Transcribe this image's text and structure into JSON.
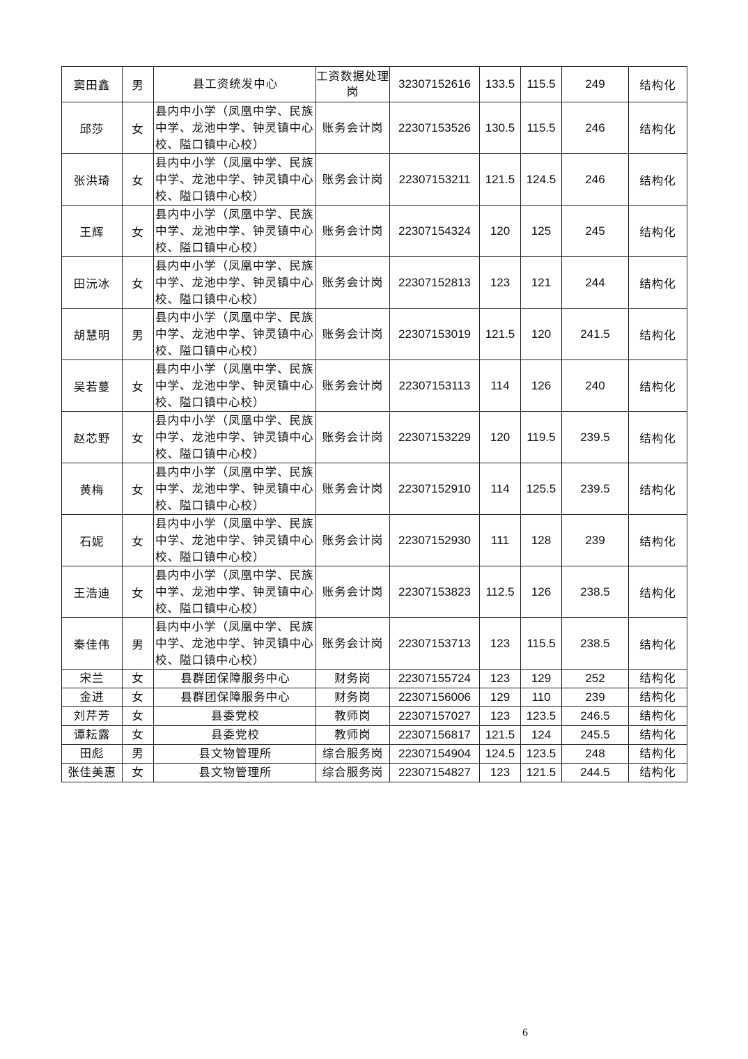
{
  "rows": [
    {
      "name": "窦田鑫",
      "gender": "男",
      "unit": "县工资统发中心",
      "position": "工资数据处理岗",
      "id": "32307152616",
      "score1": "133.5",
      "score2": "115.5",
      "total": "249",
      "type": "结构化"
    },
    {
      "name": "邱莎",
      "gender": "女",
      "unit": "县内中小学（凤凰中学、民族中学、龙池中学、钟灵镇中心校、隘口镇中心校）",
      "position": "账务会计岗",
      "id": "22307153526",
      "score1": "130.5",
      "score2": "115.5",
      "total": "246",
      "type": "结构化"
    },
    {
      "name": "张洪琦",
      "gender": "女",
      "unit": "县内中小学（凤凰中学、民族中学、龙池中学、钟灵镇中心校、隘口镇中心校）",
      "position": "账务会计岗",
      "id": "22307153211",
      "score1": "121.5",
      "score2": "124.5",
      "total": "246",
      "type": "结构化"
    },
    {
      "name": "王辉",
      "gender": "女",
      "unit": "县内中小学（凤凰中学、民族中学、龙池中学、钟灵镇中心校、隘口镇中心校）",
      "position": "账务会计岗",
      "id": "22307154324",
      "score1": "120",
      "score2": "125",
      "total": "245",
      "type": "结构化"
    },
    {
      "name": "田沅冰",
      "gender": "女",
      "unit": "县内中小学（凤凰中学、民族中学、龙池中学、钟灵镇中心校、隘口镇中心校）",
      "position": "账务会计岗",
      "id": "22307152813",
      "score1": "123",
      "score2": "121",
      "total": "244",
      "type": "结构化"
    },
    {
      "name": "胡慧明",
      "gender": "男",
      "unit": "县内中小学（凤凰中学、民族中学、龙池中学、钟灵镇中心校、隘口镇中心校）",
      "position": "账务会计岗",
      "id": "22307153019",
      "score1": "121.5",
      "score2": "120",
      "total": "241.5",
      "type": "结构化"
    },
    {
      "name": "吴若蔓",
      "gender": "女",
      "unit": "县内中小学（凤凰中学、民族中学、龙池中学、钟灵镇中心校、隘口镇中心校）",
      "position": "账务会计岗",
      "id": "22307153113",
      "score1": "114",
      "score2": "126",
      "total": "240",
      "type": "结构化"
    },
    {
      "name": "赵芯野",
      "gender": "女",
      "unit": "县内中小学（凤凰中学、民族中学、龙池中学、钟灵镇中心校、隘口镇中心校）",
      "position": "账务会计岗",
      "id": "22307153229",
      "score1": "120",
      "score2": "119.5",
      "total": "239.5",
      "type": "结构化"
    },
    {
      "name": "黄梅",
      "gender": "女",
      "unit": "县内中小学（凤凰中学、民族中学、龙池中学、钟灵镇中心校、隘口镇中心校）",
      "position": "账务会计岗",
      "id": "22307152910",
      "score1": "114",
      "score2": "125.5",
      "total": "239.5",
      "type": "结构化"
    },
    {
      "name": "石妮",
      "gender": "女",
      "unit": "县内中小学（凤凰中学、民族中学、龙池中学、钟灵镇中心校、隘口镇中心校）",
      "position": "账务会计岗",
      "id": "22307152930",
      "score1": "111",
      "score2": "128",
      "total": "239",
      "type": "结构化"
    },
    {
      "name": "王浩迪",
      "gender": "女",
      "unit": "县内中小学（凤凰中学、民族中学、龙池中学、钟灵镇中心校、隘口镇中心校）",
      "position": "账务会计岗",
      "id": "22307153823",
      "score1": "112.5",
      "score2": "126",
      "total": "238.5",
      "type": "结构化"
    },
    {
      "name": "秦佳伟",
      "gender": "男",
      "unit": "县内中小学（凤凰中学、民族中学、龙池中学、钟灵镇中心校、隘口镇中心校）",
      "position": "账务会计岗",
      "id": "22307153713",
      "score1": "123",
      "score2": "115.5",
      "total": "238.5",
      "type": "结构化"
    },
    {
      "name": "宋兰",
      "gender": "女",
      "unit": "县群团保障服务中心",
      "position": "财务岗",
      "id": "22307155724",
      "score1": "123",
      "score2": "129",
      "total": "252",
      "type": "结构化"
    },
    {
      "name": "金进",
      "gender": "女",
      "unit": "县群团保障服务中心",
      "position": "财务岗",
      "id": "22307156006",
      "score1": "129",
      "score2": "110",
      "total": "239",
      "type": "结构化"
    },
    {
      "name": "刘芹芳",
      "gender": "女",
      "unit": "县委党校",
      "position": "教师岗",
      "id": "22307157027",
      "score1": "123",
      "score2": "123.5",
      "total": "246.5",
      "type": "结构化"
    },
    {
      "name": "谭耘露",
      "gender": "女",
      "unit": "县委党校",
      "position": "教师岗",
      "id": "22307156817",
      "score1": "121.5",
      "score2": "124",
      "total": "245.5",
      "type": "结构化"
    },
    {
      "name": "田彪",
      "gender": "男",
      "unit": "县文物管理所",
      "position": "综合服务岗",
      "id": "22307154904",
      "score1": "124.5",
      "score2": "123.5",
      "total": "248",
      "type": "结构化"
    },
    {
      "name": "张佳美惠",
      "gender": "女",
      "unit": "县文物管理所",
      "position": "综合服务岗",
      "id": "22307154827",
      "score1": "123",
      "score2": "121.5",
      "total": "244.5",
      "type": "结构化"
    }
  ],
  "page_number": "6"
}
